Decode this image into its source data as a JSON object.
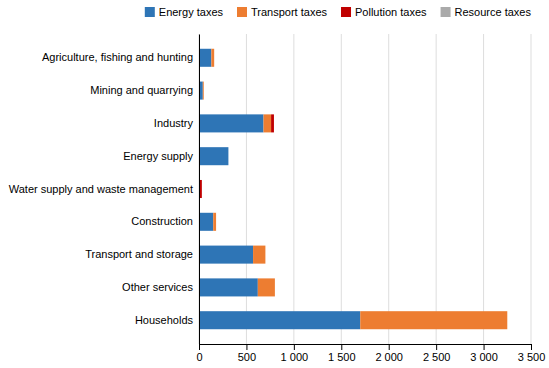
{
  "chart_data": {
    "type": "bar",
    "orientation": "horizontal",
    "stacked": true,
    "categories": [
      "Agriculture, fishing and hunting",
      "Mining and quarrying",
      "Industry",
      "Energy supply",
      "Water supply and waste management",
      "Construction",
      "Transport and storage",
      "Other services",
      "Households"
    ],
    "series": [
      {
        "name": "Energy taxes",
        "color": "#2E75B6",
        "values": [
          130,
          40,
          680,
          310,
          10,
          150,
          570,
          620,
          1700
        ]
      },
      {
        "name": "Transport taxes",
        "color": "#ED7D31",
        "values": [
          30,
          10,
          80,
          0,
          0,
          30,
          130,
          180,
          1550
        ]
      },
      {
        "name": "Pollution taxes",
        "color": "#C00000",
        "values": [
          0,
          0,
          30,
          0,
          20,
          0,
          0,
          0,
          0
        ]
      },
      {
        "name": "Resource taxes",
        "color": "#AAAAAA",
        "values": [
          0,
          0,
          0,
          0,
          0,
          0,
          0,
          0,
          0
        ]
      }
    ],
    "xlim": [
      0,
      3500
    ],
    "xticks": [
      0,
      500,
      {
        "value": 1000,
        "label": "1 000"
      },
      {
        "value": 1500,
        "label": "1 500"
      },
      {
        "value": 2000,
        "label": "2 000"
      },
      {
        "value": 2500,
        "label": "2 500"
      },
      {
        "value": 3000,
        "label": "3 000"
      },
      {
        "value": 3500,
        "label": "3 500"
      }
    ],
    "grid": true,
    "legend": "upper right"
  }
}
